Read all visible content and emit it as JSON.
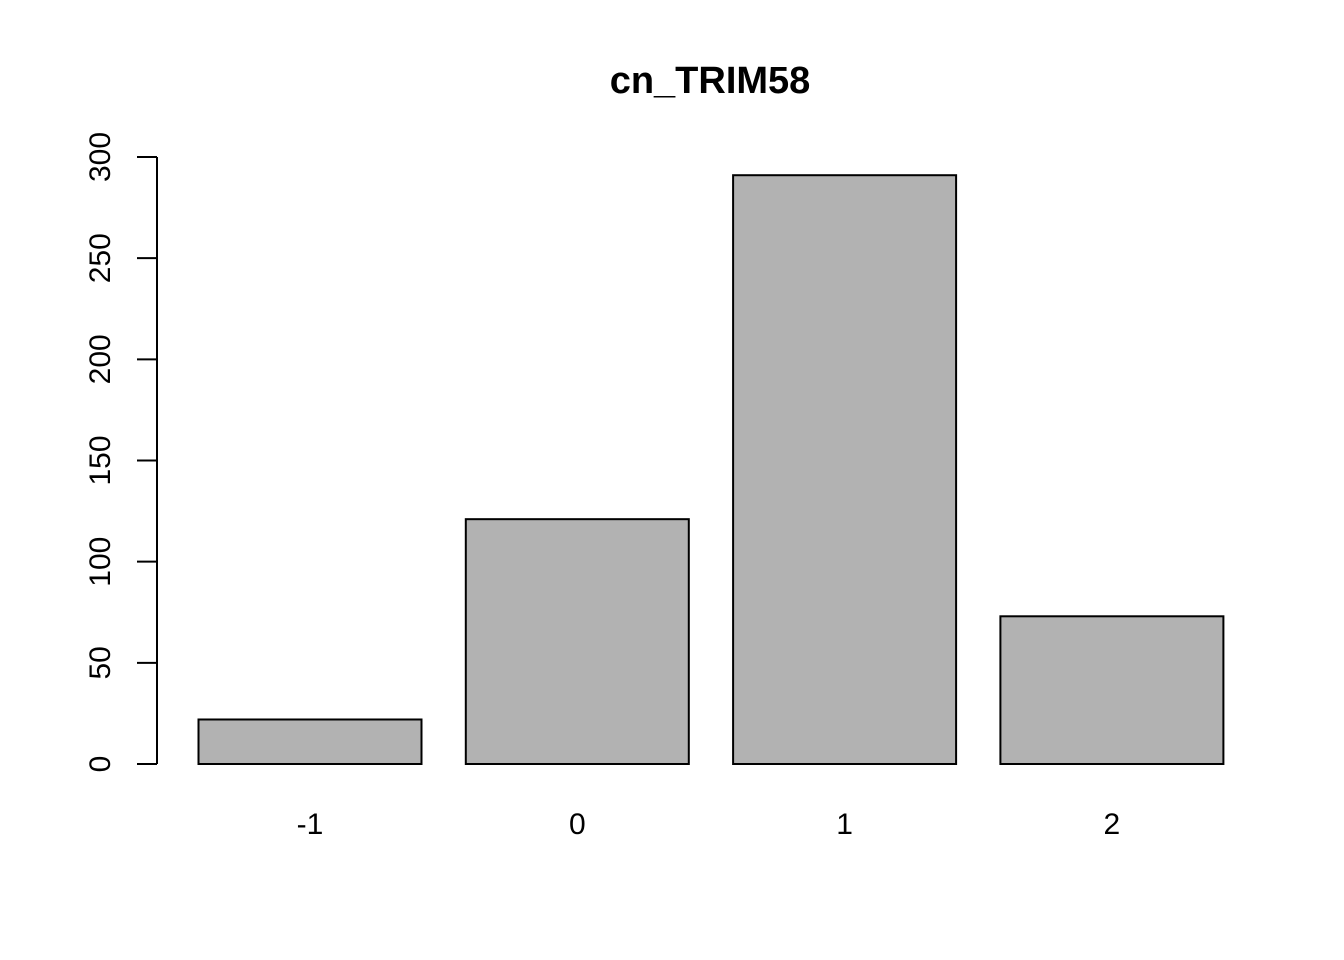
{
  "chart_data": {
    "type": "bar",
    "title": "cn_TRIM58",
    "xlabel": "",
    "ylabel": "",
    "categories": [
      "-1",
      "0",
      "1",
      "2"
    ],
    "values": [
      22,
      121,
      291,
      73
    ],
    "ylim": [
      0,
      300
    ],
    "yticks": [
      0,
      50,
      100,
      150,
      200,
      250,
      300
    ],
    "ytick_labels": [
      "0",
      "50",
      "100",
      "150",
      "200",
      "250",
      "300"
    ],
    "bar_color": "#b2b2b2",
    "grid": false,
    "legend": "none"
  }
}
